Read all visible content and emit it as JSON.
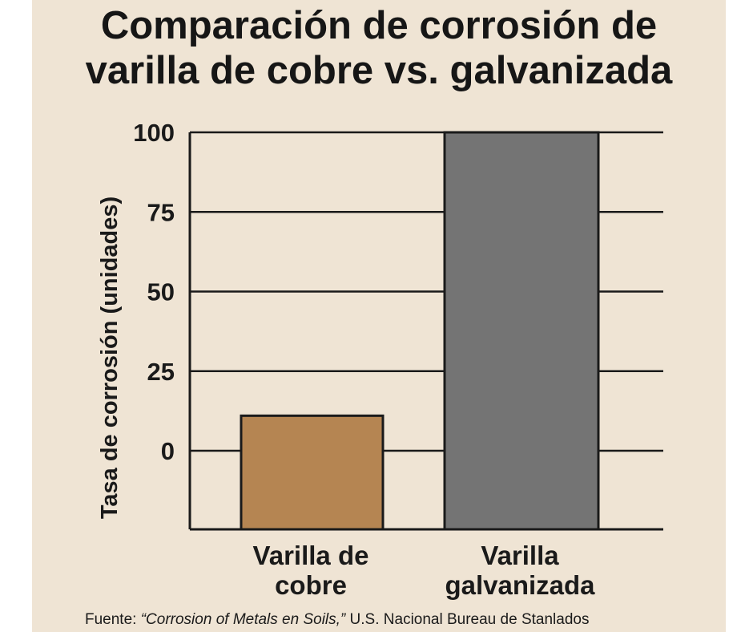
{
  "chart_data": {
    "type": "bar",
    "title": [
      "Comparación de corrosión de",
      "varilla de cobre vs. galvanizada"
    ],
    "ylabel": "Tasa de corrosión (unidades)",
    "xlabel": "",
    "categories": [
      [
        "Varilla de",
        "cobre"
      ],
      [
        "Varilla",
        "galvanizada"
      ]
    ],
    "values": [
      11,
      100
    ],
    "bar_colors": [
      "#b58552",
      "#747474"
    ],
    "yticks": [
      0,
      25,
      50,
      75,
      100
    ],
    "ylim": [
      -25,
      100
    ],
    "grid": true
  },
  "source": {
    "prefix": "Fuente: ",
    "italic": "“Corrosion of Metals en Soils,”",
    "rest": " U.S. Nacional Bureau de Stanlados"
  }
}
